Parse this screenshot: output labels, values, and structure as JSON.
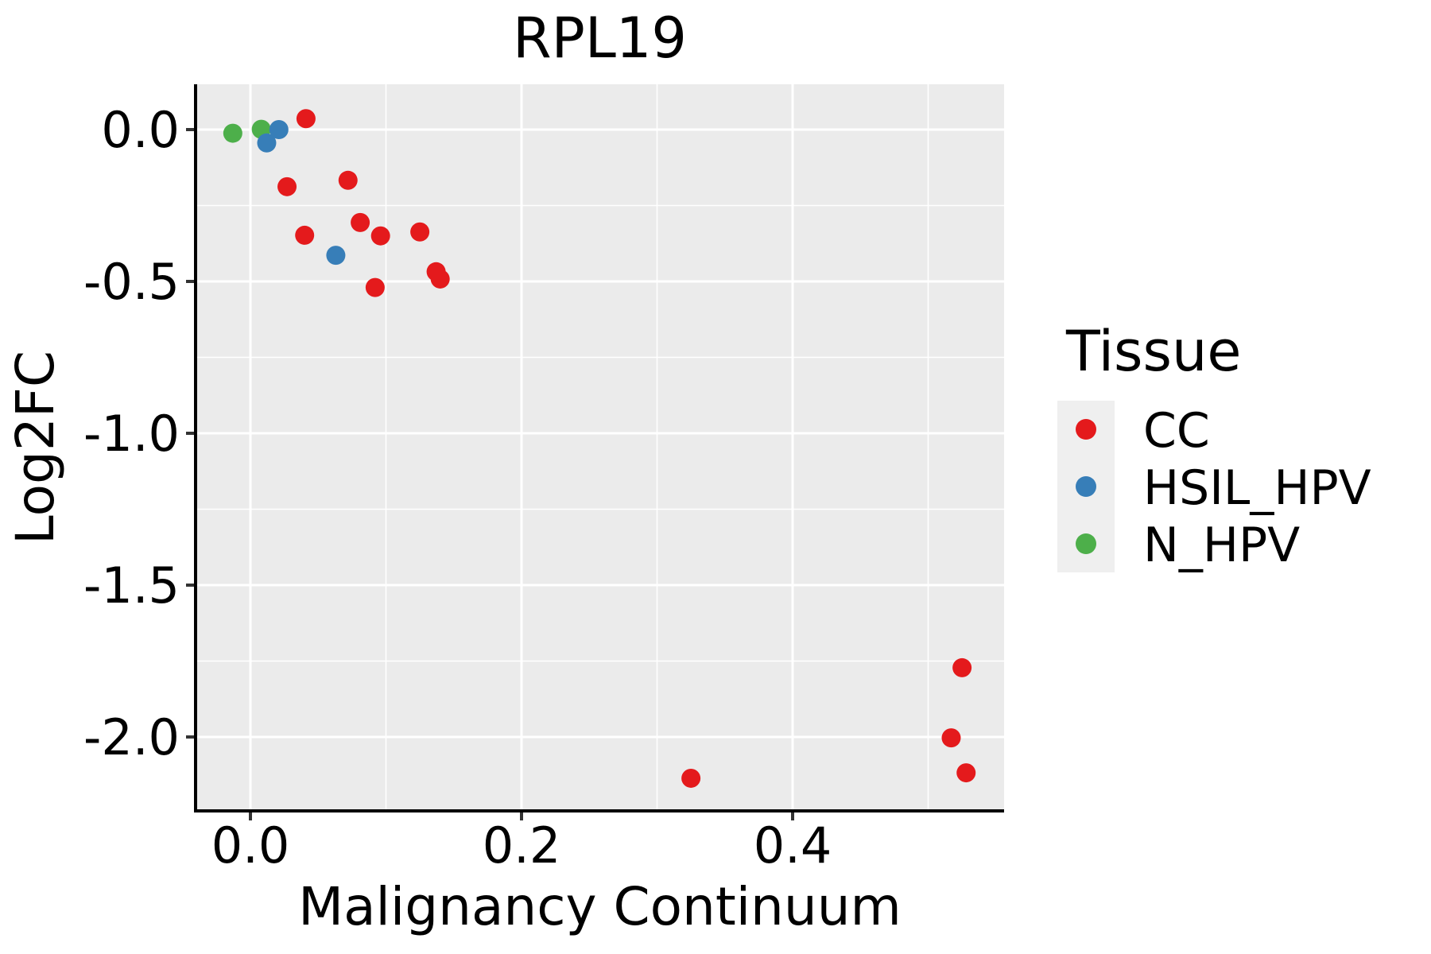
{
  "title": "RPL19",
  "axes": {
    "x": {
      "label": "Malignancy Continuum",
      "ticks": [
        0.0,
        0.2,
        0.4
      ],
      "tick_labels": [
        "0.0",
        "0.2",
        "0.4"
      ],
      "minor_ticks": [
        0.1,
        0.3,
        0.5
      ]
    },
    "y": {
      "label": "Log2FC",
      "ticks": [
        0.0,
        -0.5,
        -1.0,
        -1.5,
        -2.0
      ],
      "tick_labels": [
        "0.0",
        "-0.5",
        "-1.0",
        "-1.5",
        "-2.0"
      ],
      "minor_ticks": [
        -0.25,
        -0.75,
        -1.25,
        -1.75
      ]
    }
  },
  "legend": {
    "title": "Tissue",
    "entries": [
      {
        "label": "CC",
        "color": "#E41A1C"
      },
      {
        "label": "HSIL_HPV",
        "color": "#377EB8"
      },
      {
        "label": "N_HPV",
        "color": "#4DAF4A"
      }
    ]
  },
  "colors": {
    "panel_bg": "#EBEBEB",
    "grid_major": "#FFFFFF",
    "grid_minor": "#FFFFFF",
    "axis_line": "#000000",
    "tick_mark": "#333333",
    "legend_key_bg": "#EFEFEF",
    "text": "#000000"
  },
  "chart_data": {
    "type": "scatter",
    "title": "RPL19",
    "xlabel": "Malignancy Continuum",
    "ylabel": "Log2FC",
    "xlim": [
      -0.04,
      0.556
    ],
    "ylim": [
      -2.24,
      0.15
    ],
    "grid": true,
    "legend_position": "right",
    "series": [
      {
        "name": "CC",
        "color": "#E41A1C",
        "points": [
          [
            0.041,
            0.036
          ],
          [
            0.027,
            -0.188
          ],
          [
            0.072,
            -0.167
          ],
          [
            0.04,
            -0.348
          ],
          [
            0.081,
            -0.306
          ],
          [
            0.096,
            -0.35
          ],
          [
            0.125,
            -0.337
          ],
          [
            0.092,
            -0.52
          ],
          [
            0.137,
            -0.468
          ],
          [
            0.14,
            -0.492
          ],
          [
            0.325,
            -2.136
          ],
          [
            0.525,
            -1.772
          ],
          [
            0.517,
            -2.003
          ],
          [
            0.528,
            -2.118
          ]
        ]
      },
      {
        "name": "N_HPV",
        "color": "#4DAF4A",
        "points": [
          [
            -0.013,
            -0.012
          ],
          [
            0.008,
            0.001
          ]
        ]
      },
      {
        "name": "HSIL_HPV",
        "color": "#377EB8",
        "points": [
          [
            0.012,
            -0.044
          ],
          [
            0.021,
            0.0
          ],
          [
            0.063,
            -0.414
          ]
        ]
      }
    ]
  }
}
